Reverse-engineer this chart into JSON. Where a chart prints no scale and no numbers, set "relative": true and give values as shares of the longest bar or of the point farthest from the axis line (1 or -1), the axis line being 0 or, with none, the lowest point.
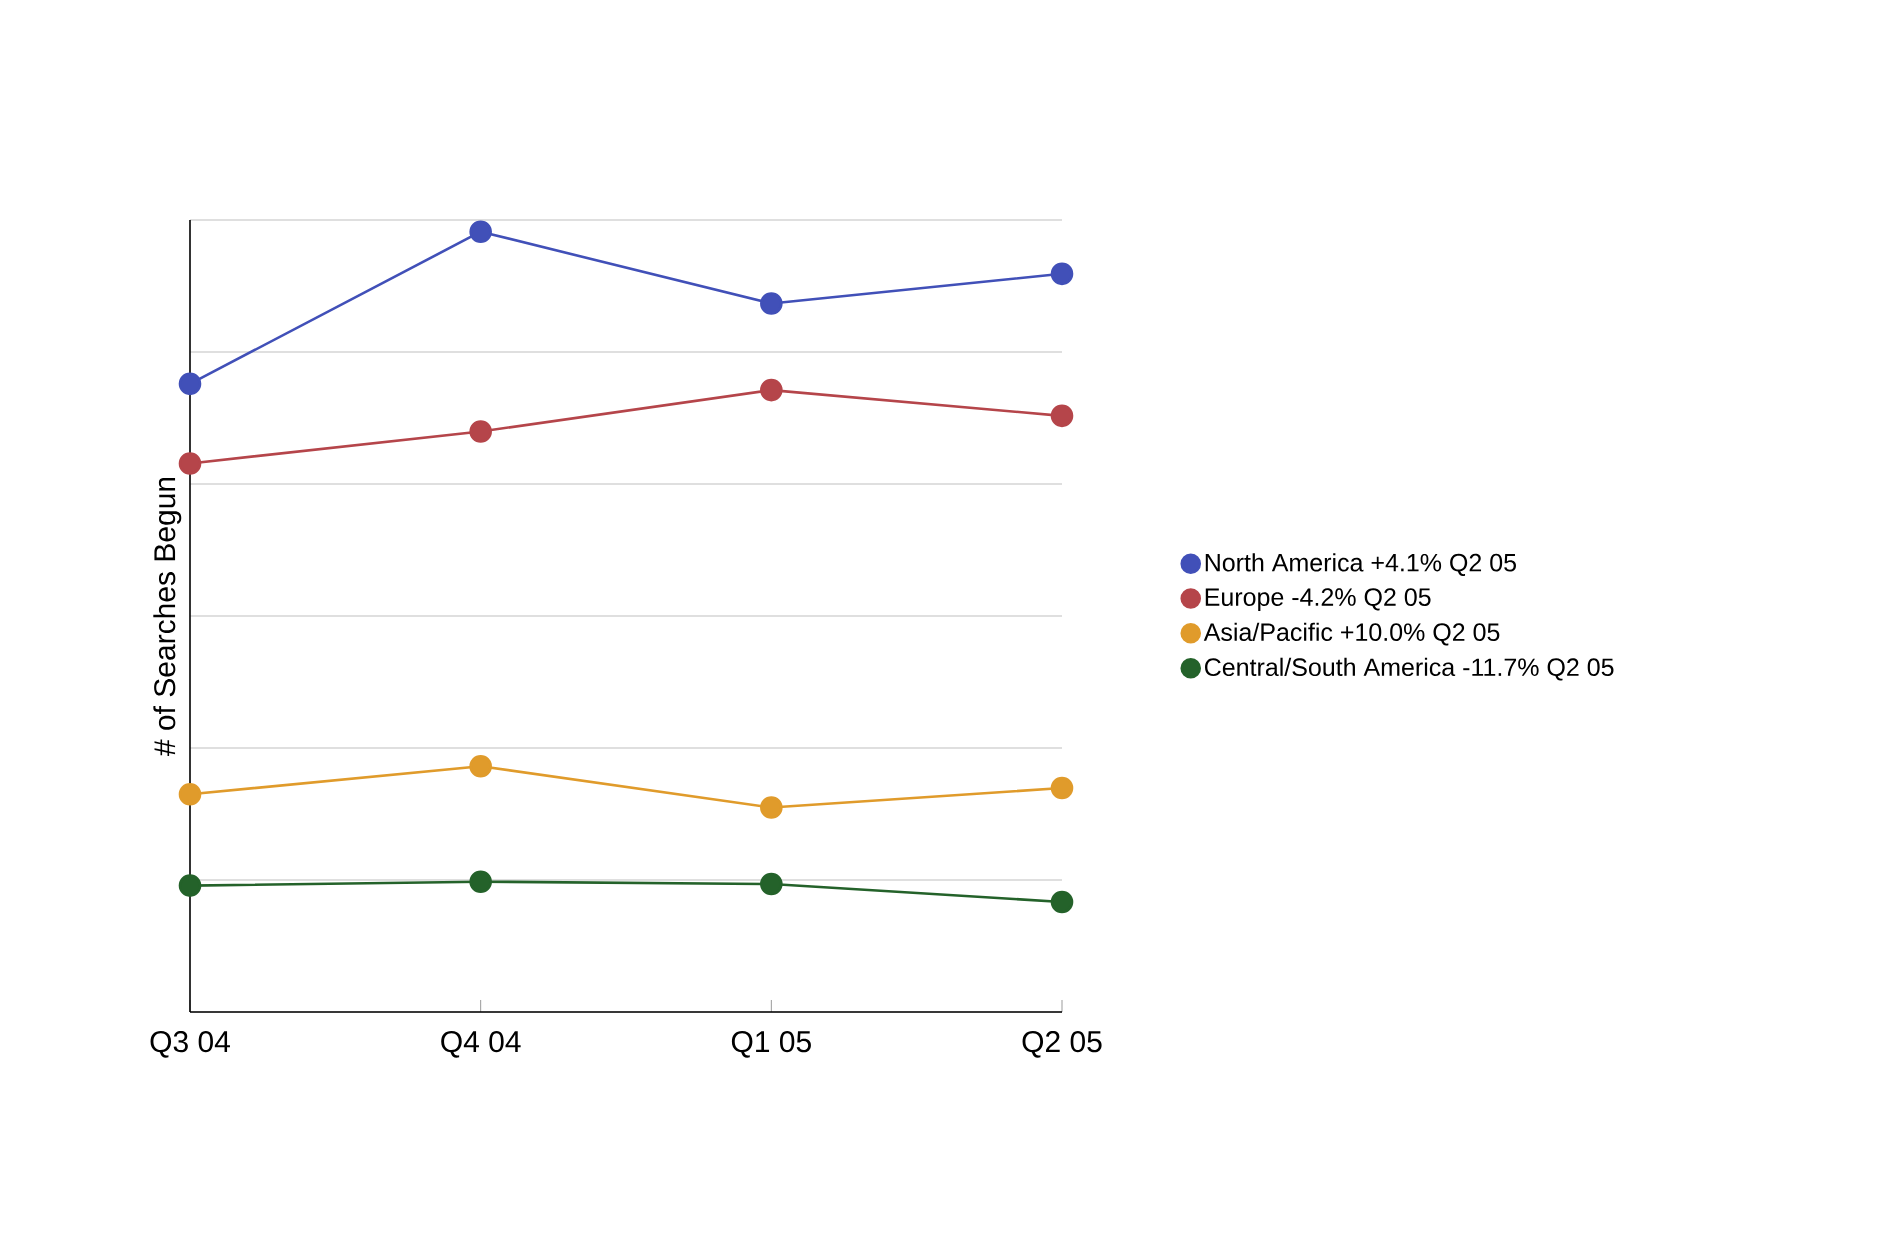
{
  "chart_data": {
    "type": "line",
    "ylabel": "# of Searches Begun",
    "relative": true,
    "categories": [
      "Q3 04",
      "Q4 04",
      "Q1 05",
      "Q2 05"
    ],
    "series": [
      {
        "name": "North America +4.1% Q2 05",
        "color": "#4150b8",
        "values": [
          0.805,
          1,
          0.908,
          0.946
        ]
      },
      {
        "name": "Europe -4.2% Q2 05",
        "color": "#b5454a",
        "values": [
          0.703,
          0.744,
          0.797,
          0.764
        ]
      },
      {
        "name": "Asia/Pacific +10.0% Q2 05",
        "color": "#e09b2b",
        "values": [
          0.279,
          0.315,
          0.262,
          0.287
        ]
      },
      {
        "name": "Central/South America -11.7% Q2 05",
        "color": "#24622a",
        "values": [
          0.162,
          0.167,
          0.164,
          0.141
        ]
      }
    ],
    "grid": "y",
    "legend": "right",
    "marker": "circle",
    "line_style": "solid"
  }
}
